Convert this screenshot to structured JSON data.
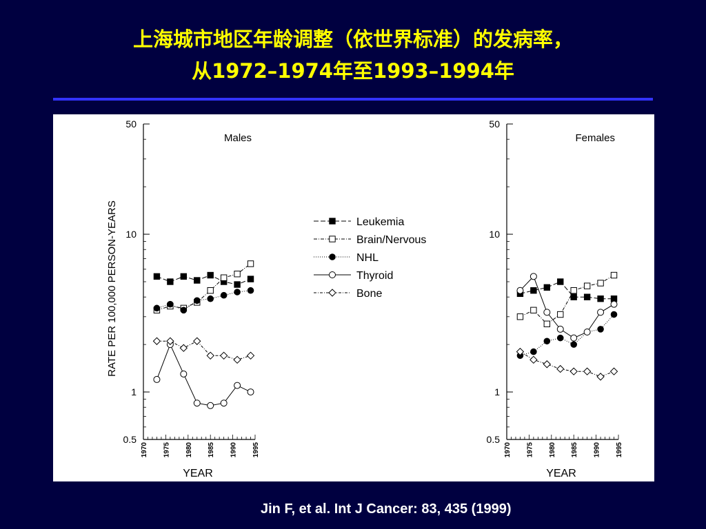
{
  "slide": {
    "title_line1": "上海城市地区年龄调整（依世界标准）的发病率，",
    "title_line2": "从1972–1974年至1993–1994年",
    "citation": "Jin F, et al. Int J  Cancer: 83, 435 (1999)"
  },
  "colors": {
    "background": "#000040",
    "title": "#ffff00",
    "rule": "#3333ff",
    "citation": "#ffffff"
  },
  "chart_data": [
    {
      "type": "line",
      "panel_label": "Males",
      "ylabel": "RATE PER 100,000 PERSON-YEARS",
      "xlabel": "YEAR",
      "y_scale": "log",
      "ylim": [
        0.5,
        50
      ],
      "y_ticks": [
        0.5,
        1,
        10,
        50
      ],
      "y_tick_labels": [
        "0.5",
        "1",
        "10",
        "50"
      ],
      "xlim": [
        1970,
        1995
      ],
      "x_ticks": [
        1970,
        1975,
        1980,
        1985,
        1990,
        1995
      ],
      "x_tick_labels": [
        "1970",
        "1975",
        "1980",
        "1985",
        "1990",
        "1995"
      ],
      "x": [
        1973,
        1976,
        1979,
        1982,
        1985,
        1988,
        1991,
        1994
      ],
      "series": [
        {
          "name": "Leukemia",
          "marker": "filled-square",
          "values": [
            5.4,
            5.0,
            5.4,
            5.1,
            5.5,
            5.0,
            4.8,
            5.2
          ]
        },
        {
          "name": "Brain/Nervous",
          "marker": "open-square",
          "values": [
            3.3,
            3.5,
            3.4,
            3.7,
            4.4,
            5.3,
            5.6,
            6.5
          ]
        },
        {
          "name": "NHL",
          "marker": "filled-circle",
          "values": [
            3.4,
            3.6,
            3.3,
            3.8,
            3.9,
            4.1,
            4.3,
            4.4
          ]
        },
        {
          "name": "Thyroid",
          "marker": "open-circle",
          "values": [
            1.2,
            2.0,
            1.3,
            0.85,
            0.82,
            0.85,
            1.1,
            1.0
          ]
        },
        {
          "name": "Bone",
          "marker": "open-diamond",
          "values": [
            2.1,
            2.1,
            1.9,
            2.1,
            1.7,
            1.7,
            1.6,
            1.7
          ]
        }
      ]
    },
    {
      "type": "line",
      "panel_label": "Females",
      "xlabel": "YEAR",
      "y_scale": "log",
      "ylim": [
        0.5,
        50
      ],
      "y_ticks": [
        0.5,
        1,
        10,
        50
      ],
      "y_tick_labels": [
        "0.5",
        "1",
        "10",
        "50"
      ],
      "xlim": [
        1970,
        1995
      ],
      "x_ticks": [
        1970,
        1975,
        1980,
        1985,
        1990,
        1995
      ],
      "x_tick_labels": [
        "1970",
        "1975",
        "1980",
        "1985",
        "1990",
        "1995"
      ],
      "x": [
        1973,
        1976,
        1979,
        1982,
        1985,
        1988,
        1991,
        1994
      ],
      "series": [
        {
          "name": "Leukemia",
          "marker": "filled-square",
          "values": [
            4.2,
            4.4,
            4.6,
            5.0,
            4.0,
            4.0,
            3.9,
            3.9
          ]
        },
        {
          "name": "Brain/Nervous",
          "marker": "open-square",
          "values": [
            3.0,
            3.3,
            2.7,
            3.1,
            4.4,
            4.7,
            4.9,
            5.5
          ]
        },
        {
          "name": "NHL",
          "marker": "filled-circle",
          "values": [
            1.7,
            1.8,
            2.1,
            2.2,
            2.0,
            2.4,
            2.5,
            3.1
          ]
        },
        {
          "name": "Thyroid",
          "marker": "open-circle",
          "values": [
            4.4,
            5.4,
            3.2,
            2.5,
            2.2,
            2.4,
            3.2,
            3.6
          ]
        },
        {
          "name": "Bone",
          "marker": "open-diamond",
          "values": [
            1.8,
            1.6,
            1.5,
            1.4,
            1.35,
            1.35,
            1.25,
            1.35
          ]
        }
      ]
    }
  ],
  "legend": {
    "placement": "center",
    "entries": [
      {
        "label": "Leukemia",
        "marker": "filled-square"
      },
      {
        "label": "Brain/Nervous",
        "marker": "open-square"
      },
      {
        "label": "NHL",
        "marker": "filled-circle"
      },
      {
        "label": "Thyroid",
        "marker": "open-circle"
      },
      {
        "label": "Bone",
        "marker": "open-diamond"
      }
    ]
  }
}
